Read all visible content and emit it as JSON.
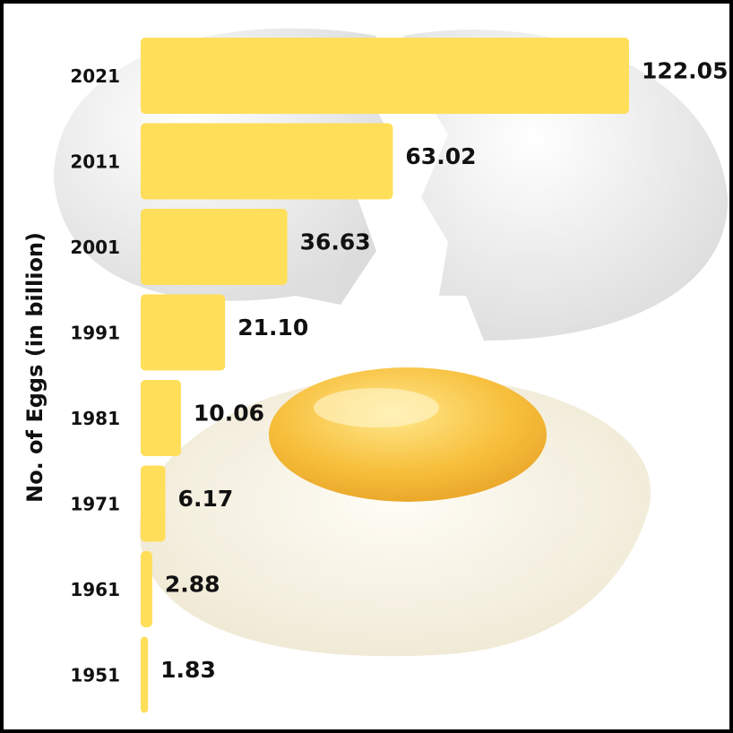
{
  "chart_data": {
    "type": "bar",
    "orientation": "horizontal",
    "y_axis_label": "No. of Eggs (in billion)",
    "categories": [
      "2021",
      "2011",
      "2001",
      "1991",
      "1981",
      "1971",
      "1961",
      "1951"
    ],
    "values": [
      122.05,
      63.02,
      36.63,
      21.1,
      10.06,
      6.17,
      2.88,
      1.83
    ],
    "value_labels": [
      "122.05",
      "63.02",
      "36.63",
      "21.10",
      "10.06",
      "6.17",
      "2.88",
      "1.83"
    ],
    "color": "#ffde5a"
  }
}
